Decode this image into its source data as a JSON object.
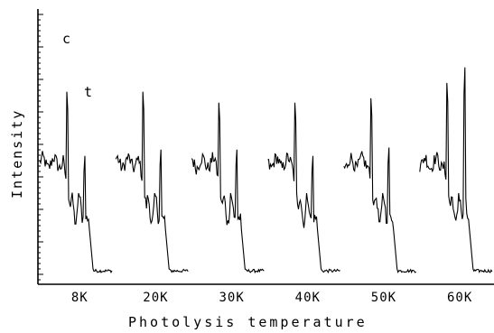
{
  "chart_data": {
    "type": "line",
    "title": "",
    "xlabel": "Photolysis temperature",
    "ylabel": "Intensity",
    "categories": [
      "8K",
      "20K",
      "30K",
      "40K",
      "50K",
      "60K"
    ],
    "annotations": [
      "c",
      "t"
    ],
    "grid": false,
    "legend": "none",
    "series": [
      {
        "temperature": "8K",
        "peak_c": 0.84,
        "peak_t": 0.57
      },
      {
        "temperature": "20K",
        "peak_c": 0.84,
        "peak_t": 0.6
      },
      {
        "temperature": "30K",
        "peak_c": 0.79,
        "peak_t": 0.6
      },
      {
        "temperature": "40K",
        "peak_c": 0.79,
        "peak_t": 0.57
      },
      {
        "temperature": "50K",
        "peak_c": 0.81,
        "peak_t": 0.61
      },
      {
        "temperature": "60K",
        "peak_c": 0.88,
        "peak_t": 0.99
      }
    ]
  }
}
